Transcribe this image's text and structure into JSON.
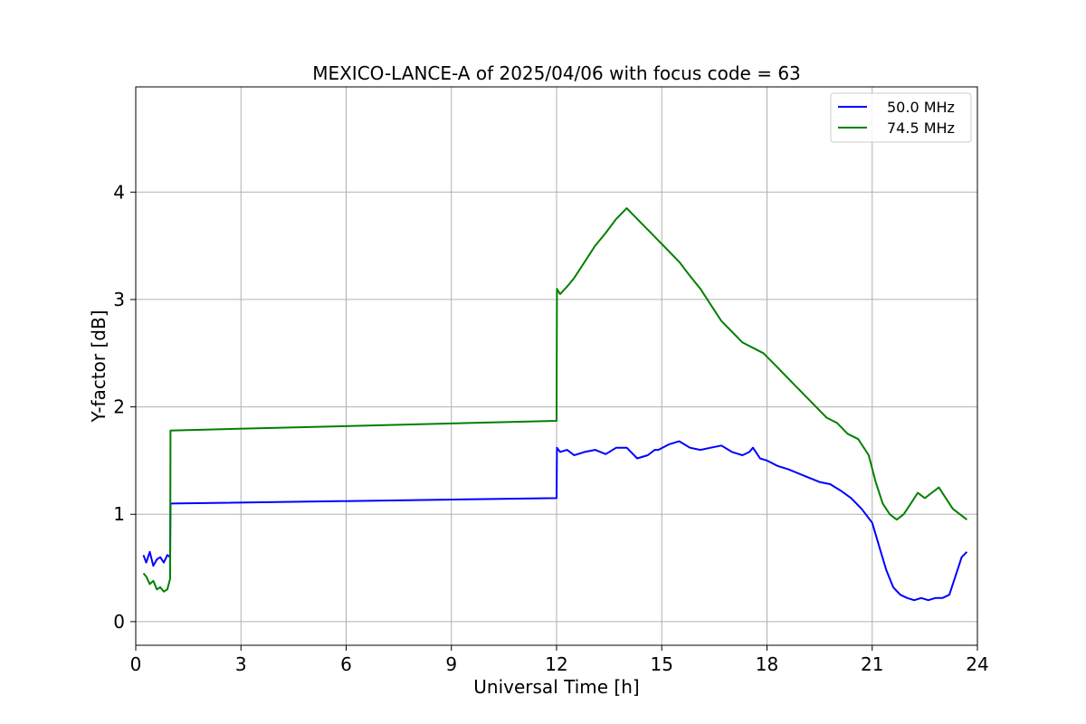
{
  "chart_data": {
    "type": "line",
    "title": "MEXICO-LANCE-A of 2025/04/06 with focus code = 63",
    "xlabel": "Universal Time [h]",
    "ylabel": "Y-factor [dB]",
    "xlim": [
      0,
      24
    ],
    "ylim": [
      -0.22,
      4.98
    ],
    "xticks": [
      0,
      3,
      6,
      9,
      12,
      15,
      18,
      21,
      24
    ],
    "xtick_labels": [
      "0",
      "3",
      "6",
      "9",
      "12",
      "15",
      "18",
      "21",
      "24"
    ],
    "yticks": [
      0,
      1,
      2,
      3,
      4
    ],
    "ytick_labels": [
      "0",
      "1",
      "2",
      "3",
      "4"
    ],
    "grid": true,
    "legend_position": "top-right",
    "series": [
      {
        "name": "50.0 MHz",
        "color": "#0000ff",
        "x": [
          0.22,
          0.3,
          0.4,
          0.5,
          0.6,
          0.7,
          0.8,
          0.9,
          0.98,
          0.99,
          12.0,
          12.01,
          12.1,
          12.3,
          12.5,
          12.8,
          13.1,
          13.4,
          13.7,
          14.0,
          14.3,
          14.6,
          14.8,
          14.9,
          15.2,
          15.5,
          15.8,
          16.1,
          16.4,
          16.7,
          17.0,
          17.3,
          17.5,
          17.6,
          17.8,
          18.0,
          18.3,
          18.6,
          18.9,
          19.2,
          19.5,
          19.8,
          20.1,
          20.4,
          20.7,
          21.0,
          21.2,
          21.4,
          21.6,
          21.8,
          22.0,
          22.2,
          22.4,
          22.6,
          22.8,
          23.0,
          23.2,
          23.4,
          23.55,
          23.7
        ],
        "y": [
          0.62,
          0.55,
          0.65,
          0.52,
          0.58,
          0.6,
          0.55,
          0.62,
          0.6,
          1.1,
          1.15,
          1.62,
          1.58,
          1.6,
          1.55,
          1.58,
          1.6,
          1.56,
          1.62,
          1.62,
          1.52,
          1.55,
          1.6,
          1.6,
          1.65,
          1.68,
          1.62,
          1.6,
          1.62,
          1.64,
          1.58,
          1.55,
          1.58,
          1.62,
          1.52,
          1.5,
          1.45,
          1.42,
          1.38,
          1.34,
          1.3,
          1.28,
          1.22,
          1.15,
          1.05,
          0.92,
          0.7,
          0.48,
          0.32,
          0.25,
          0.22,
          0.2,
          0.22,
          0.2,
          0.22,
          0.22,
          0.25,
          0.45,
          0.6,
          0.65
        ]
      },
      {
        "name": "74.5 MHz",
        "color": "#008000",
        "x": [
          0.22,
          0.3,
          0.4,
          0.5,
          0.6,
          0.7,
          0.8,
          0.9,
          0.98,
          0.99,
          12.0,
          12.01,
          12.1,
          12.3,
          12.5,
          12.8,
          13.1,
          13.4,
          13.7,
          14.0,
          14.3,
          14.6,
          14.9,
          15.2,
          15.5,
          15.8,
          16.1,
          16.4,
          16.7,
          17.0,
          17.3,
          17.6,
          17.9,
          18.2,
          18.5,
          18.8,
          19.1,
          19.4,
          19.7,
          20.0,
          20.3,
          20.6,
          20.9,
          21.1,
          21.3,
          21.5,
          21.7,
          21.9,
          22.1,
          22.3,
          22.5,
          22.7,
          22.9,
          23.1,
          23.3,
          23.5,
          23.7
        ],
        "y": [
          0.45,
          0.42,
          0.35,
          0.38,
          0.3,
          0.32,
          0.28,
          0.3,
          0.4,
          1.78,
          1.87,
          3.1,
          3.05,
          3.12,
          3.2,
          3.35,
          3.5,
          3.62,
          3.75,
          3.85,
          3.75,
          3.65,
          3.55,
          3.45,
          3.35,
          3.22,
          3.1,
          2.95,
          2.8,
          2.7,
          2.6,
          2.55,
          2.5,
          2.4,
          2.3,
          2.2,
          2.1,
          2.0,
          1.9,
          1.85,
          1.75,
          1.7,
          1.55,
          1.3,
          1.1,
          1.0,
          0.95,
          1.0,
          1.1,
          1.2,
          1.15,
          1.2,
          1.25,
          1.15,
          1.05,
          1.0,
          0.95
        ]
      }
    ]
  }
}
